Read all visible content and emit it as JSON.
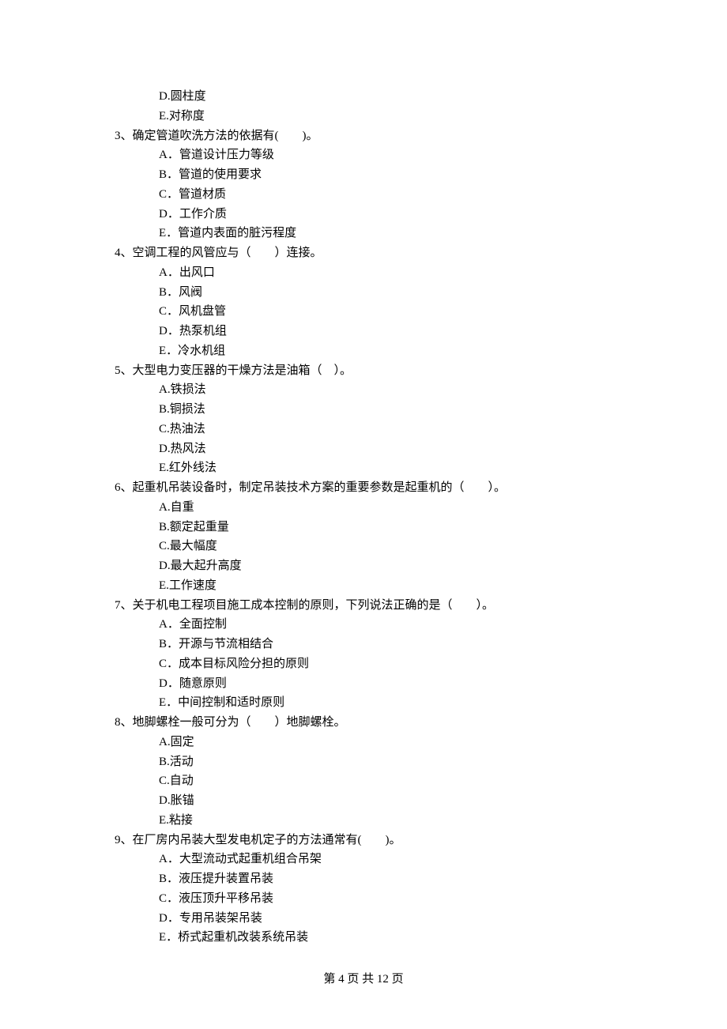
{
  "orphan_options": [
    "D.圆柱度",
    "E.对称度"
  ],
  "questions": [
    {
      "num": "3、",
      "stem": "确定管道吹洗方法的依据有(　　)。",
      "options": [
        "A．管道设计压力等级",
        "B．管道的使用要求",
        "C．管道材质",
        "D．工作介质",
        "E．管道内表面的脏污程度"
      ]
    },
    {
      "num": "4、",
      "stem": "空调工程的风管应与（　　）连接。",
      "options": [
        "A．出风口",
        "B．风阀",
        "C．风机盘管",
        "D．热泵机组",
        "E．冷水机组"
      ]
    },
    {
      "num": "5、",
      "stem": "大型电力变压器的干燥方法是油箱（　）。",
      "options": [
        "A.铁损法",
        "B.铜损法",
        "C.热油法",
        "D.热风法",
        "E.红外线法"
      ]
    },
    {
      "num": "6、",
      "stem": "起重机吊装设备时，制定吊装技术方案的重要参数是起重机的（　　）。",
      "options": [
        "A.自重",
        "B.额定起重量",
        "C.最大幅度",
        "D.最大起升高度",
        "E.工作速度"
      ]
    },
    {
      "num": "7、",
      "stem": "关于机电工程项目施工成本控制的原则，下列说法正确的是（　　）。",
      "options": [
        "A．全面控制",
        "B．开源与节流相结合",
        "C．成本目标风险分担的原则",
        "D．随意原则",
        "E．中间控制和适时原则"
      ]
    },
    {
      "num": "8、",
      "stem": "地脚螺栓一般可分为（　　）地脚螺栓。",
      "options": [
        "A.固定",
        "B.活动",
        "C.自动",
        "D.胀锚",
        "E.粘接"
      ]
    },
    {
      "num": "9、",
      "stem": "在厂房内吊装大型发电机定子的方法通常有(　　)。",
      "options": [
        "A．大型流动式起重机组合吊架",
        "B．液压提升装置吊装",
        "C．液压顶升平移吊装",
        "D．专用吊装架吊装",
        "E．桥式起重机改装系统吊装"
      ]
    }
  ],
  "footer": "第 4 页 共 12 页"
}
